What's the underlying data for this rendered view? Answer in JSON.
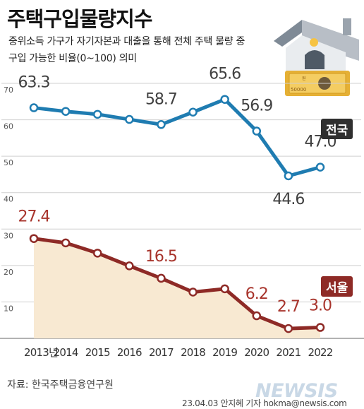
{
  "header": {
    "title": "주택구입물량지수",
    "subtitle_line1": "중위소득 가구가 자기자본과 대출을 통해 전체 주택 물량 중",
    "subtitle_line2": "구입 가능한 비율(0~100) 의미"
  },
  "footer": {
    "source": "자료: 한국주택금융연구원",
    "credit": "23.04.03 안지혜 기자 hokma@newsis.com",
    "watermark": "NEWSIS"
  },
  "illustration": {
    "banknote_label": "50000",
    "banknote_mark": "원"
  },
  "colors": {
    "national": "#1f7cb1",
    "seoul": "#8e2a26",
    "seoul_fill": "#f8e9d2",
    "grid": "#cfcfcf",
    "label_national": "#404040",
    "label_seoul": "#a8342c"
  },
  "chart_data": {
    "type": "line",
    "x": [
      "2013년",
      "2014",
      "2015",
      "2016",
      "2017",
      "2018",
      "2019",
      "2020",
      "2021",
      "2022"
    ],
    "yticks": [
      10,
      20,
      30,
      40,
      50,
      60,
      70
    ],
    "ylim": [
      0,
      70
    ],
    "grid": true,
    "series": [
      {
        "name": "전국",
        "values": [
          63.3,
          62.3,
          61.5,
          60.1,
          58.7,
          62.1,
          65.6,
          56.9,
          44.6,
          47.0
        ],
        "labels": [
          "63.3",
          "",
          "",
          "",
          "58.7",
          "",
          "65.6",
          "56.9",
          "44.6",
          "47.0"
        ]
      },
      {
        "name": "서울",
        "values": [
          27.4,
          26.2,
          23.4,
          19.9,
          16.5,
          12.7,
          13.6,
          6.2,
          2.7,
          3.0
        ],
        "labels": [
          "27.4",
          "",
          "",
          "",
          "16.5",
          "",
          "",
          "6.2",
          "2.7",
          "3.0"
        ]
      }
    ]
  }
}
